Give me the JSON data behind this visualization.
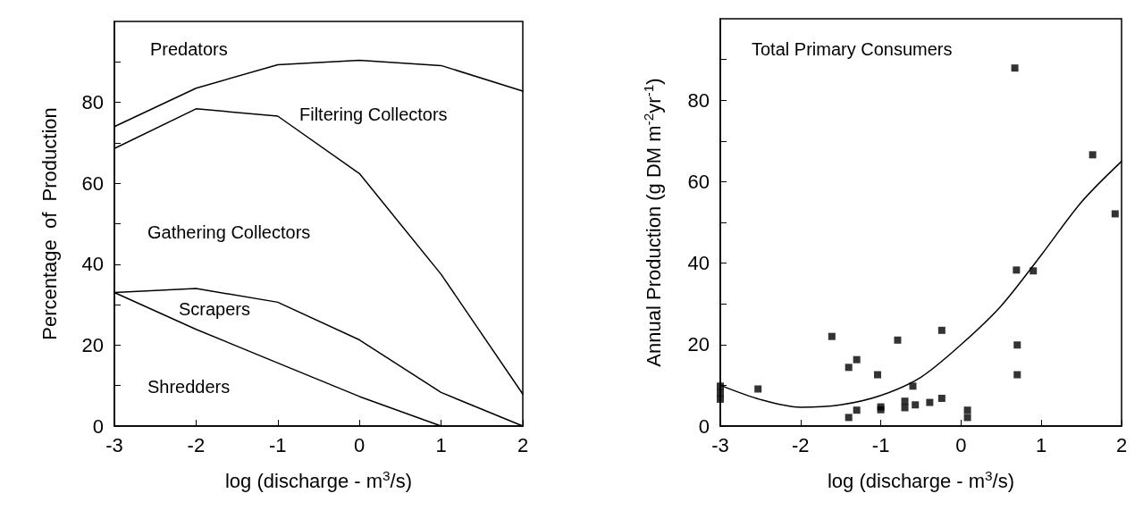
{
  "chart_data": [
    {
      "type": "line",
      "xlabel": "log (discharge - m$^{3}$/s)",
      "ylabel": "Percentage  of  Production",
      "xlim": [
        -3,
        2
      ],
      "xticks": [
        -3,
        -2,
        -1,
        0,
        1,
        2
      ],
      "ylim": [
        0,
        100
      ],
      "yticks": [
        0,
        {
          "value": 10,
          "label": null
        },
        20,
        {
          "value": 30,
          "label": null
        },
        40,
        {
          "value": 50,
          "label": null
        },
        60,
        {
          "value": 70,
          "label": null
        },
        80,
        {
          "value": 90,
          "label": null
        }
      ],
      "marker": "none",
      "line_style": "solid",
      "x": [
        -3,
        -2,
        -1,
        0,
        1,
        2
      ],
      "series": [
        {
          "color": "#000000",
          "values": [
            74,
            83.5,
            89.3,
            90.4,
            89.1,
            82.8
          ]
        },
        {
          "color": "#000000",
          "values": [
            68.6,
            78.4,
            76.6,
            62.4,
            37.5,
            7.9
          ]
        },
        {
          "color": "#000000",
          "values": [
            33,
            34,
            30.6,
            21.3,
            8.3,
            0
          ]
        },
        {
          "color": "#000000",
          "values": [
            33,
            23.9,
            15.6,
            7.3,
            0,
            null
          ]
        }
      ],
      "annotations": [
        "Predators",
        "Filtering Collectors",
        "Gathering Collectors",
        "Scrapers",
        "Shredders"
      ]
    },
    {
      "type": "scatter",
      "title": "Total Primary Consumers",
      "xlabel": "log (discharge - m$^{3}$/s)",
      "ylabel": "Annual Production (g DM m$^{-2}$yr$^{-1}$)",
      "xlim": [
        -3,
        2
      ],
      "xticks": [
        -3,
        -2,
        -1,
        0,
        1,
        2
      ],
      "ylim": [
        0,
        100
      ],
      "yticks": [
        0,
        {
          "value": 10,
          "label": null
        },
        20,
        {
          "value": 30,
          "label": null
        },
        40,
        {
          "value": 50,
          "label": null
        },
        60,
        {
          "value": 70,
          "label": null
        },
        80,
        {
          "value": 90,
          "label": null
        }
      ],
      "marker": "square",
      "series": [
        {
          "color": "#000000",
          "x": [
            -3,
            -3,
            -3,
            -2.53,
            -1.61,
            -1.4,
            -1.3,
            -1.4,
            -1.3,
            -1.04,
            -1,
            -1,
            -0.79,
            -0.7,
            -0.7,
            -0.6,
            -0.57,
            -0.39,
            -0.24,
            -0.24,
            0.08,
            0.08,
            0.67,
            0.69,
            0.9,
            0.7,
            0.7,
            1.64,
            1.92
          ],
          "values": [
            9.8,
            8.2,
            6.6,
            9.1,
            22,
            14.4,
            16.3,
            2.1,
            3.9,
            12.6,
            4.7,
            4,
            21.1,
            6.1,
            4.5,
            9.8,
            5.2,
            5.8,
            23.5,
            6.8,
            3.9,
            2.1,
            87.9,
            38.3,
            38.1,
            19.9,
            12.6,
            66.6,
            52.1
          ]
        },
        {
          "type": "line",
          "color": "#000000",
          "marker": "none",
          "line_style": "solid",
          "x": [
            -3,
            -2.5,
            -2,
            -1.5,
            -1,
            -0.5,
            0,
            0.5,
            1,
            1.5,
            2
          ],
          "values": [
            10,
            6.5,
            4.6,
            5.2,
            7.5,
            12,
            20,
            29.5,
            42,
            55,
            65
          ]
        }
      ]
    }
  ]
}
